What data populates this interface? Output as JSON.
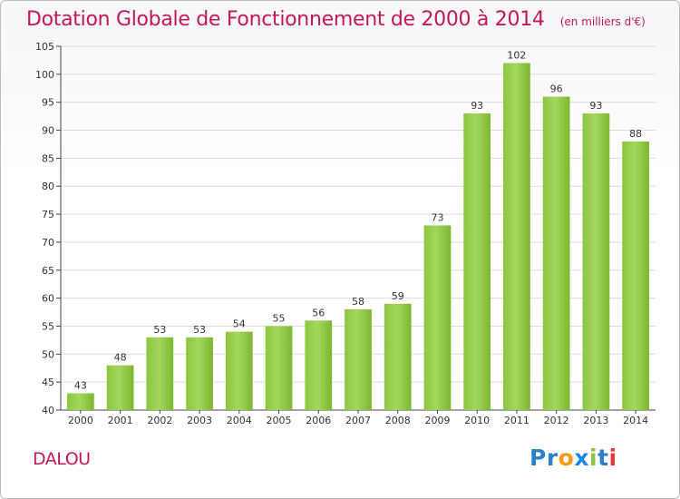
{
  "title": "Dotation Globale de Fonctionnement de 2000 à 2014",
  "unit": "(en milliers d'€)",
  "commune": "DALOU",
  "logo": {
    "letters": [
      "P",
      "r",
      "o",
      "x",
      "i",
      "t",
      "i"
    ],
    "colors": [
      "#2f7fc8",
      "#2f7fc8",
      "#f39c12",
      "#1e88e5",
      "#8bc34a",
      "#2f7fc8",
      "#e53935"
    ]
  },
  "chart_data": {
    "type": "bar",
    "categories": [
      "2000",
      "2001",
      "2002",
      "2003",
      "2004",
      "2005",
      "2006",
      "2007",
      "2008",
      "2009",
      "2010",
      "2011",
      "2012",
      "2013",
      "2014"
    ],
    "values": [
      43,
      48,
      53,
      53,
      54,
      55,
      56,
      58,
      59,
      73,
      93,
      102,
      96,
      93,
      88
    ],
    "data_labels": [
      "43",
      "48",
      "53",
      "53",
      "54",
      "55",
      "56",
      "58",
      "59",
      "73",
      "93",
      "102",
      "96",
      "93",
      "88"
    ],
    "yticks": [
      "40",
      "45",
      "50",
      "55",
      "60",
      "65",
      "70",
      "75",
      "80",
      "85",
      "90",
      "95",
      "100",
      "105"
    ],
    "ylim": [
      40,
      105
    ],
    "grid": true,
    "bar_color": "#7cb82f",
    "bar_color_light": "#a4d65e",
    "title": "Dotation Globale de Fonctionnement de 2000 à 2014",
    "xlabel": "",
    "ylabel": ""
  }
}
